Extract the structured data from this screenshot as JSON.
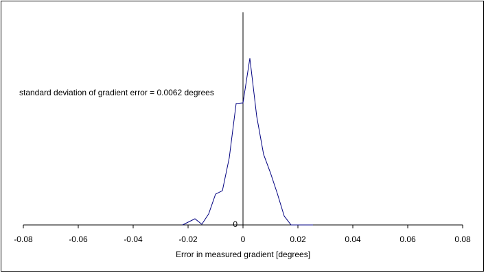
{
  "chart_data": {
    "type": "line",
    "annotation": "standard deviation of gradient error = 0.0062 degrees",
    "x_label": "Error in measured gradient [degrees]",
    "x": [
      -0.022,
      -0.0175,
      -0.015,
      -0.0125,
      -0.01,
      -0.0075,
      -0.005,
      -0.0025,
      0,
      0.0025,
      0.005,
      0.0075,
      0.01,
      0.0125,
      0.015,
      0.0175,
      0.0255
    ],
    "series": [
      {
        "color": "#000080",
        "values": [
          0,
          2.9,
          0.3,
          5.2,
          14.5,
          16.1,
          31.6,
          57.1,
          57.4,
          78.4,
          51,
          33.2,
          24.5,
          14.8,
          4.2,
          0,
          0
        ]
      }
    ],
    "xlim": [
      -0.08,
      0.08
    ],
    "xticks": [
      -0.08,
      -0.06,
      -0.04,
      -0.02,
      0,
      0.02,
      0.04,
      0.06,
      0.08
    ],
    "ylim": [
      0,
      100
    ],
    "yticks": [
      0
    ]
  }
}
